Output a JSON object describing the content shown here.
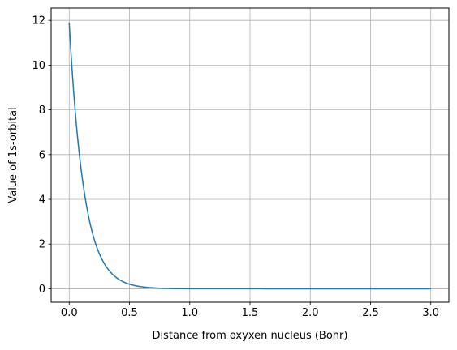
{
  "chart_data": {
    "type": "line",
    "title": "",
    "xlabel": "Distance from oxyxen nucleus (Bohr)",
    "ylabel": "Value of 1s-orbital",
    "xlim": [
      -0.15,
      3.15
    ],
    "ylim": [
      -0.6,
      12.55
    ],
    "grid": true,
    "xticks": [
      0.0,
      0.5,
      1.0,
      1.5,
      2.0,
      2.5,
      3.0
    ],
    "xtick_labels": [
      "0.0",
      "0.5",
      "1.0",
      "1.5",
      "2.0",
      "2.5",
      "3.0"
    ],
    "yticks": [
      0,
      2,
      4,
      6,
      8,
      10,
      12
    ],
    "ytick_labels": [
      "0",
      "2",
      "4",
      "6",
      "8",
      "10",
      "12"
    ],
    "series": [
      {
        "color": "#1f77b4",
        "x": [
          0.0,
          0.05,
          0.1,
          0.15,
          0.2,
          0.25,
          0.3,
          0.35,
          0.4,
          0.45,
          0.5,
          0.6,
          0.7,
          0.8,
          0.9,
          1.0,
          1.25,
          1.5,
          2.0,
          2.5,
          3.0
        ],
        "y": [
          11.9,
          7.93,
          5.29,
          3.53,
          2.35,
          1.57,
          1.05,
          0.7,
          0.465,
          0.31,
          0.207,
          0.092,
          0.041,
          0.018,
          0.008,
          0.0036,
          0.0005,
          0.0001,
          0.0,
          0.0,
          0.0
        ]
      }
    ]
  }
}
